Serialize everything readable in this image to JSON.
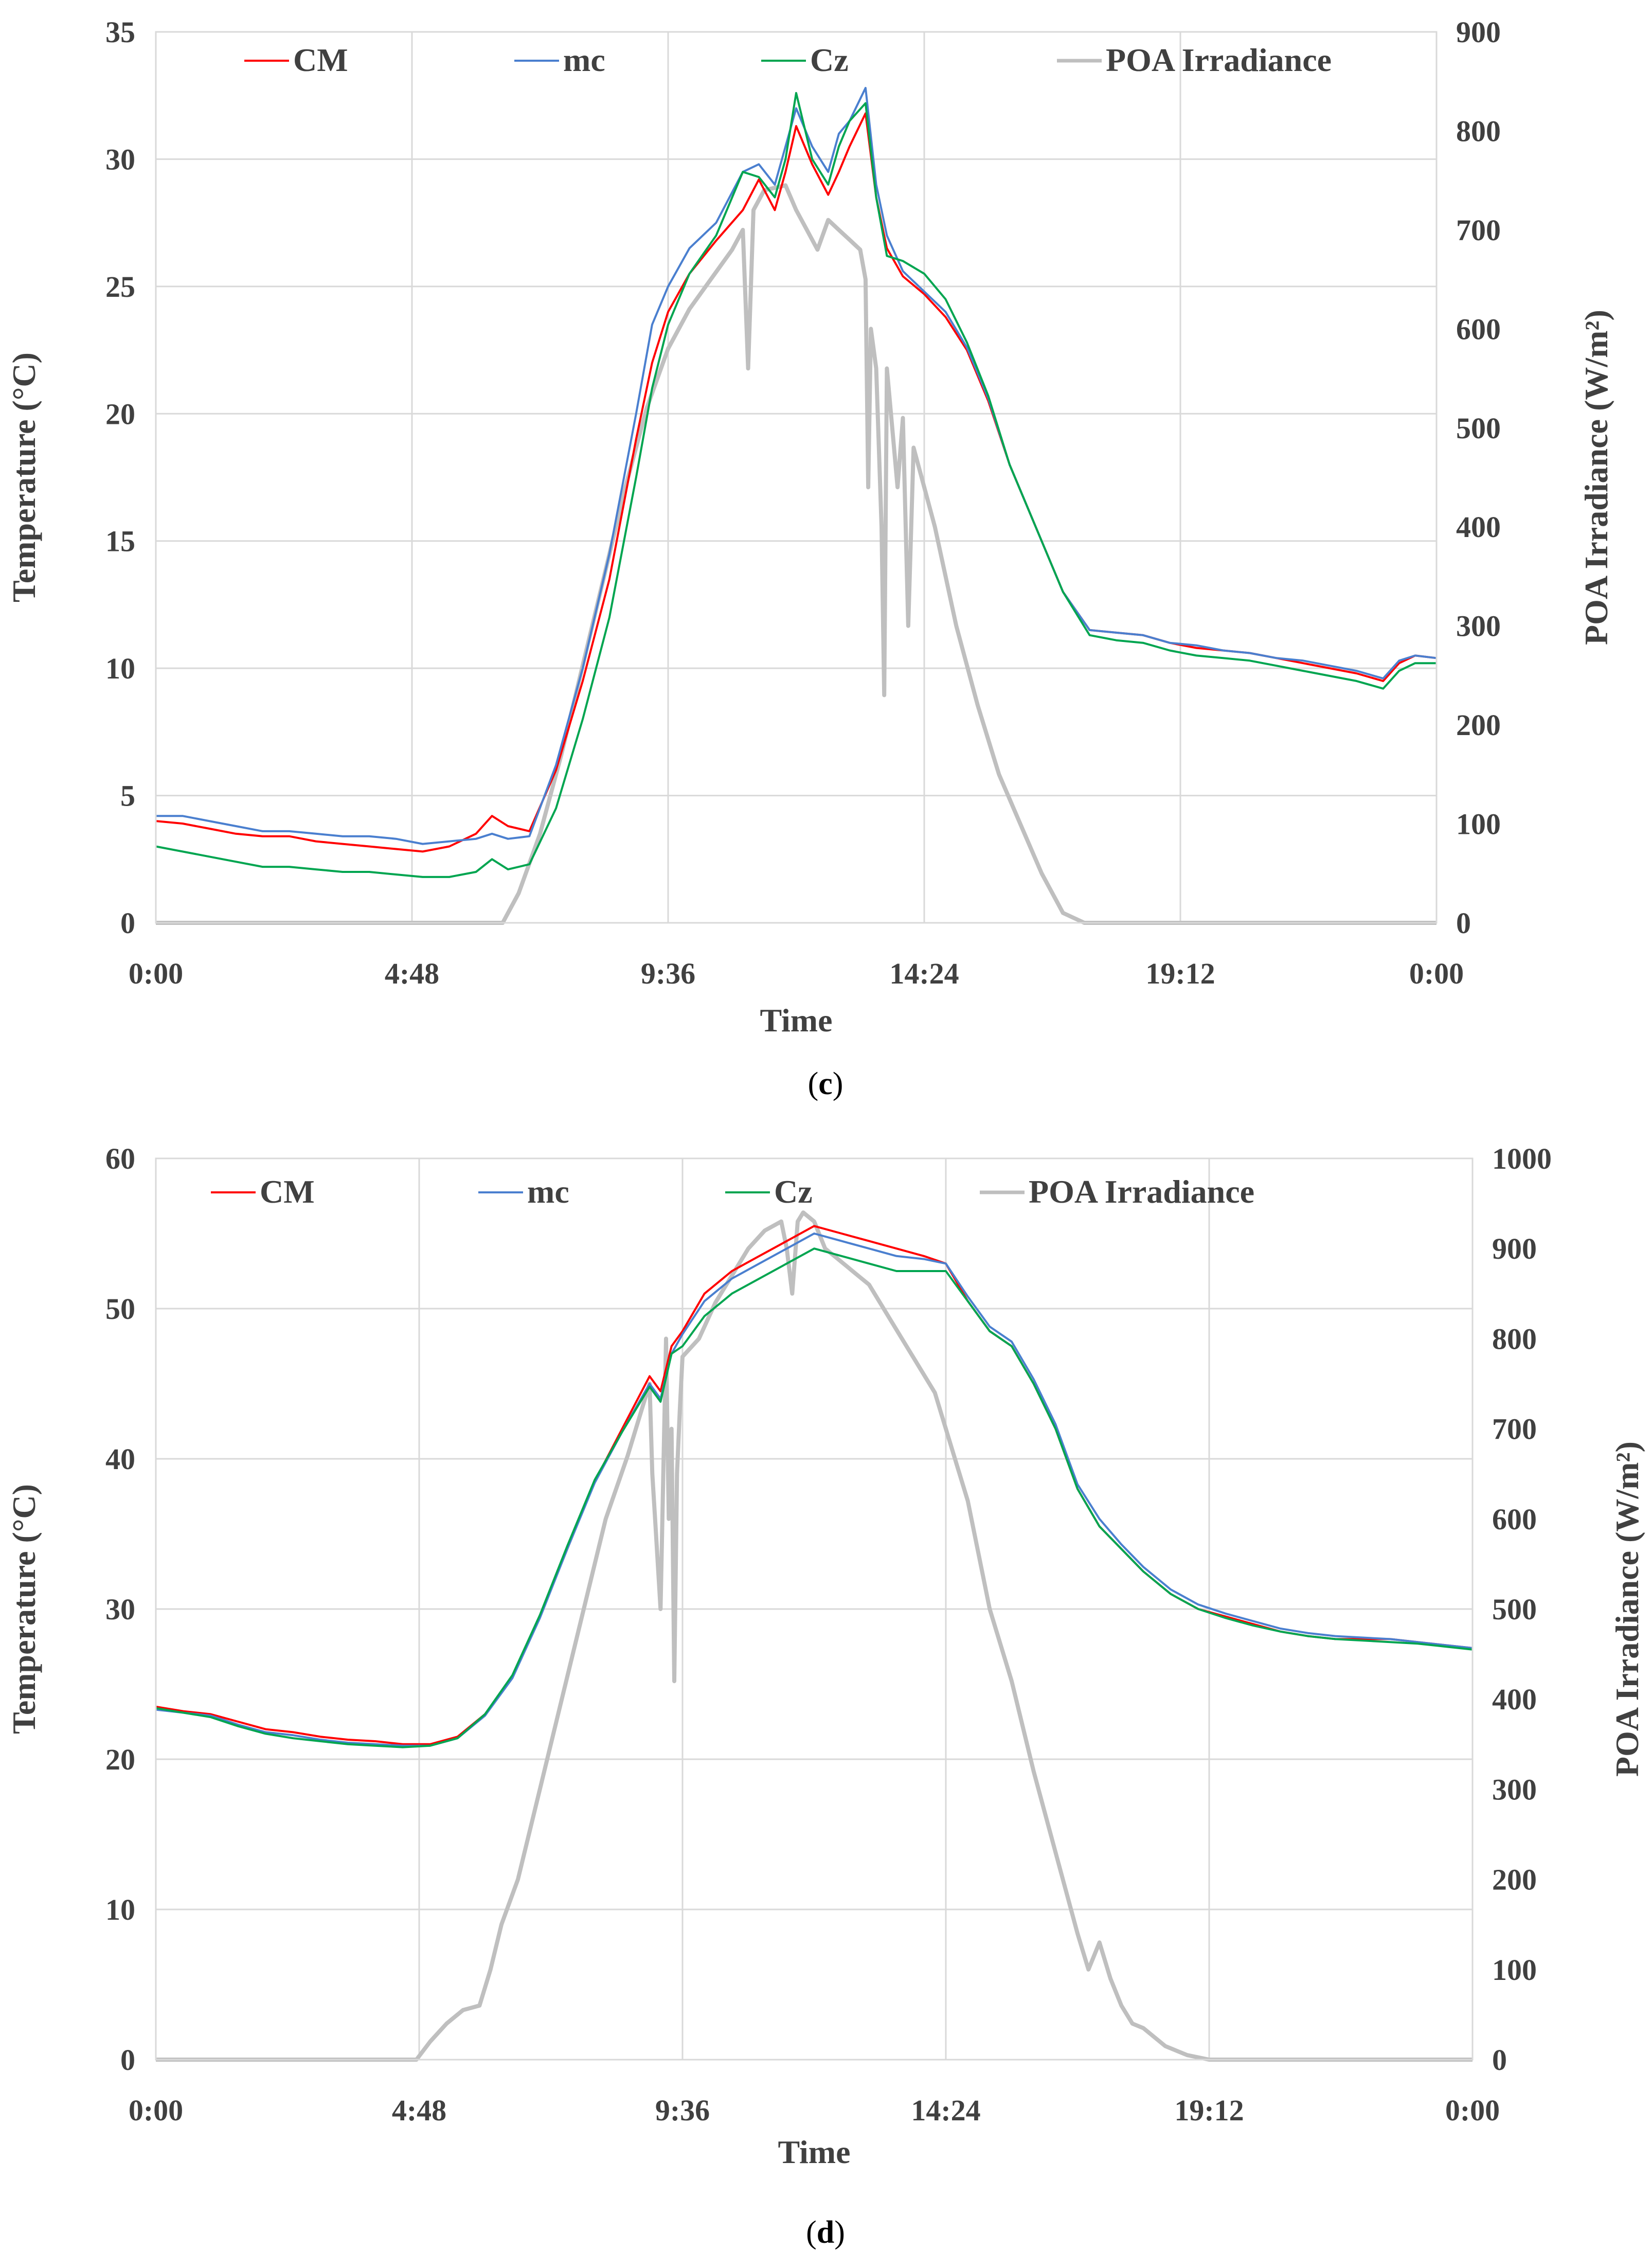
{
  "chart_data": [
    {
      "type": "line",
      "panel_label": "c",
      "xlabel": "Time",
      "ylabel": "Temperature (°C)",
      "y2label": "POA Irradiance (W/m²)",
      "x_range_hours": [
        0,
        24
      ],
      "xtick_hours": [
        0,
        4.8,
        9.6,
        14.4,
        19.2,
        24
      ],
      "xtick_labels": [
        "0:00",
        "4:48",
        "9:36",
        "14:24",
        "19:12",
        "0:00"
      ],
      "ylim": [
        0,
        35
      ],
      "yticks": [
        0,
        5,
        10,
        15,
        20,
        25,
        30,
        35
      ],
      "y2lim": [
        0,
        900
      ],
      "y2ticks": [
        0,
        100,
        200,
        300,
        400,
        500,
        600,
        700,
        800,
        900
      ],
      "grid": true,
      "legend_position": "top",
      "series": [
        {
          "name": "CM",
          "axis": "left",
          "color": "#ff0000",
          "x": [
            0,
            0.5,
            1,
            1.5,
            2,
            2.5,
            3,
            3.5,
            4,
            4.5,
            5,
            5.5,
            6,
            6.3,
            6.6,
            7,
            7.5,
            8,
            8.5,
            9,
            9.3,
            9.6,
            10,
            10.5,
            11,
            11.3,
            11.6,
            11.8,
            12,
            12.3,
            12.6,
            12.8,
            13,
            13.3,
            13.5,
            13.7,
            14,
            14.4,
            14.8,
            15.2,
            15.6,
            16,
            16.5,
            17,
            17.5,
            18,
            18.5,
            19,
            19.5,
            20,
            20.5,
            21,
            21.5,
            22,
            22.5,
            23,
            23.3,
            23.6,
            24
          ],
          "y": [
            4.0,
            3.9,
            3.7,
            3.5,
            3.4,
            3.4,
            3.2,
            3.1,
            3.0,
            2.9,
            2.8,
            3.0,
            3.5,
            4.2,
            3.8,
            3.6,
            6.0,
            9.5,
            13.5,
            19.0,
            22.0,
            24.0,
            25.5,
            26.8,
            28.0,
            29.2,
            28.0,
            29.5,
            31.3,
            29.8,
            28.6,
            29.5,
            30.5,
            31.8,
            28.5,
            26.5,
            25.4,
            24.7,
            23.8,
            22.5,
            20.5,
            18.0,
            15.5,
            13.0,
            11.5,
            11.4,
            11.3,
            11.0,
            10.8,
            10.7,
            10.6,
            10.4,
            10.2,
            10.0,
            9.8,
            9.5,
            10.2,
            10.5,
            10.4
          ]
        },
        {
          "name": "mc",
          "axis": "left",
          "color": "#4a7fcf",
          "x": [
            0,
            0.5,
            1,
            1.5,
            2,
            2.5,
            3,
            3.5,
            4,
            4.5,
            5,
            5.5,
            6,
            6.3,
            6.6,
            7,
            7.5,
            8,
            8.5,
            9,
            9.3,
            9.6,
            10,
            10.5,
            11,
            11.3,
            11.6,
            11.8,
            12,
            12.3,
            12.6,
            12.8,
            13,
            13.3,
            13.5,
            13.7,
            14,
            14.4,
            14.8,
            15.2,
            15.6,
            16,
            16.5,
            17,
            17.5,
            18,
            18.5,
            19,
            19.5,
            20,
            20.5,
            21,
            21.5,
            22,
            22.5,
            23,
            23.3,
            23.6,
            24
          ],
          "y": [
            4.2,
            4.2,
            4.0,
            3.8,
            3.6,
            3.6,
            3.5,
            3.4,
            3.4,
            3.3,
            3.1,
            3.2,
            3.3,
            3.5,
            3.3,
            3.4,
            6.2,
            10.0,
            14.5,
            20.0,
            23.5,
            25.0,
            26.5,
            27.5,
            29.5,
            29.8,
            29.0,
            30.5,
            32.0,
            30.5,
            29.5,
            31.0,
            31.5,
            32.8,
            29.0,
            27.0,
            25.6,
            24.8,
            24.0,
            22.6,
            20.6,
            18.0,
            15.5,
            13.0,
            11.5,
            11.4,
            11.3,
            11.0,
            10.9,
            10.7,
            10.6,
            10.4,
            10.3,
            10.1,
            9.9,
            9.6,
            10.3,
            10.5,
            10.4
          ]
        },
        {
          "name": "Cz",
          "axis": "left",
          "color": "#00a550",
          "x": [
            0,
            0.5,
            1,
            1.5,
            2,
            2.5,
            3,
            3.5,
            4,
            4.5,
            5,
            5.5,
            6,
            6.3,
            6.6,
            7,
            7.5,
            8,
            8.5,
            9,
            9.3,
            9.6,
            10,
            10.5,
            11,
            11.3,
            11.6,
            11.8,
            12,
            12.3,
            12.6,
            12.8,
            13,
            13.3,
            13.5,
            13.7,
            14,
            14.4,
            14.8,
            15.2,
            15.6,
            16,
            16.5,
            17,
            17.5,
            18,
            18.5,
            19,
            19.5,
            20,
            20.5,
            21,
            21.5,
            22,
            22.5,
            23,
            23.3,
            23.6,
            24
          ],
          "y": [
            3.0,
            2.8,
            2.6,
            2.4,
            2.2,
            2.2,
            2.1,
            2.0,
            2.0,
            1.9,
            1.8,
            1.8,
            2.0,
            2.5,
            2.1,
            2.3,
            4.5,
            8.0,
            12.0,
            17.5,
            21.0,
            23.5,
            25.5,
            27.0,
            29.5,
            29.3,
            28.5,
            30.0,
            32.6,
            30.0,
            29.0,
            30.5,
            31.5,
            32.2,
            28.5,
            26.2,
            26.0,
            25.5,
            24.5,
            22.8,
            20.7,
            18.0,
            15.5,
            13.0,
            11.3,
            11.1,
            11.0,
            10.7,
            10.5,
            10.4,
            10.3,
            10.1,
            9.9,
            9.7,
            9.5,
            9.2,
            9.9,
            10.2,
            10.2
          ]
        },
        {
          "name": "POA Irradiance",
          "axis": "right",
          "color": "#bfbfbf",
          "x": [
            0,
            6.5,
            6.8,
            7.2,
            7.6,
            8.0,
            8.4,
            8.8,
            9.2,
            9.6,
            10.0,
            10.4,
            10.8,
            11.0,
            11.1,
            11.2,
            11.4,
            11.8,
            12.0,
            12.2,
            12.4,
            12.6,
            12.8,
            13.0,
            13.2,
            13.3,
            13.35,
            13.4,
            13.5,
            13.6,
            13.65,
            13.7,
            13.8,
            13.9,
            14.0,
            14.1,
            14.2,
            14.4,
            14.6,
            14.8,
            15.0,
            15.4,
            15.8,
            16.2,
            16.6,
            17.0,
            17.4,
            24
          ],
          "y": [
            0,
            0,
            30,
            90,
            170,
            260,
            350,
            440,
            520,
            580,
            620,
            650,
            680,
            700,
            560,
            720,
            740,
            745,
            720,
            700,
            680,
            710,
            700,
            690,
            680,
            650,
            440,
            600,
            560,
            400,
            230,
            560,
            500,
            440,
            510,
            300,
            480,
            440,
            400,
            350,
            300,
            220,
            150,
            100,
            50,
            10,
            0,
            0
          ]
        }
      ]
    },
    {
      "type": "line",
      "panel_label": "d",
      "xlabel": "Time",
      "ylabel": "Temperature (°C)",
      "y2label": "POA Irradiance (W/m²)",
      "x_range_hours": [
        0,
        24
      ],
      "xtick_hours": [
        0,
        4.8,
        9.6,
        14.4,
        19.2,
        24
      ],
      "xtick_labels": [
        "0:00",
        "4:48",
        "9:36",
        "14:24",
        "19:12",
        "0:00"
      ],
      "ylim": [
        0,
        60
      ],
      "yticks": [
        0,
        10,
        20,
        30,
        40,
        50,
        60
      ],
      "y2lim": [
        0,
        1000
      ],
      "y2ticks": [
        0,
        100,
        200,
        300,
        400,
        500,
        600,
        700,
        800,
        900,
        1000
      ],
      "grid": true,
      "legend_position": "top",
      "series": [
        {
          "name": "CM",
          "axis": "left",
          "color": "#ff0000",
          "x": [
            0,
            0.5,
            1,
            1.5,
            2,
            2.5,
            3,
            3.5,
            4,
            4.5,
            5,
            5.5,
            6,
            6.5,
            7,
            7.5,
            8,
            8.5,
            9,
            9.2,
            9.4,
            9.6,
            10,
            10.5,
            11,
            11.5,
            12,
            12.5,
            13,
            13.5,
            14,
            14.4,
            14.8,
            15.2,
            15.6,
            16,
            16.4,
            16.8,
            17.2,
            17.6,
            18,
            18.5,
            19,
            19.5,
            20,
            20.5,
            21,
            21.5,
            22,
            22.5,
            23,
            23.5,
            24
          ],
          "y": [
            23.5,
            23.2,
            23.0,
            22.5,
            22.0,
            21.8,
            21.5,
            21.3,
            21.2,
            21.0,
            21.0,
            21.5,
            23.0,
            25.5,
            29.5,
            34.0,
            38.5,
            42.0,
            45.5,
            44.5,
            47.5,
            48.5,
            51.0,
            52.5,
            53.5,
            54.5,
            55.5,
            55.0,
            54.5,
            54.0,
            53.5,
            53.0,
            50.5,
            48.5,
            47.5,
            45.0,
            42.0,
            38.0,
            35.5,
            34.0,
            32.5,
            31.0,
            30.0,
            29.5,
            29.0,
            28.5,
            28.2,
            28.0,
            28.0,
            28.0,
            27.8,
            27.6,
            27.4
          ]
        },
        {
          "name": "mc",
          "axis": "left",
          "color": "#4a7fcf",
          "x": [
            0,
            0.5,
            1,
            1.5,
            2,
            2.5,
            3,
            3.5,
            4,
            4.5,
            5,
            5.5,
            6,
            6.5,
            7,
            7.5,
            8,
            8.5,
            9,
            9.2,
            9.4,
            9.6,
            10,
            10.5,
            11,
            11.5,
            12,
            12.5,
            13,
            13.5,
            14,
            14.4,
            14.8,
            15.2,
            15.6,
            16,
            16.4,
            16.8,
            17.2,
            17.6,
            18,
            18.5,
            19,
            19.5,
            20,
            20.5,
            21,
            21.5,
            22,
            22.5,
            23,
            23.5,
            24
          ],
          "y": [
            23.3,
            23.1,
            22.9,
            22.3,
            21.8,
            21.6,
            21.3,
            21.1,
            21.0,
            20.9,
            20.9,
            21.4,
            22.9,
            25.4,
            29.4,
            34.0,
            38.4,
            41.8,
            45.0,
            44.0,
            47.0,
            48.3,
            50.5,
            52.0,
            53.0,
            54.0,
            55.0,
            54.5,
            54.0,
            53.5,
            53.3,
            53.0,
            50.8,
            48.8,
            47.8,
            45.3,
            42.3,
            38.3,
            36.0,
            34.3,
            32.8,
            31.3,
            30.3,
            29.7,
            29.2,
            28.7,
            28.4,
            28.2,
            28.1,
            28.0,
            27.8,
            27.6,
            27.4
          ]
        },
        {
          "name": "Cz",
          "axis": "left",
          "color": "#00a550",
          "x": [
            0,
            0.5,
            1,
            1.5,
            2,
            2.5,
            3,
            3.5,
            4,
            4.5,
            5,
            5.5,
            6,
            6.5,
            7,
            7.5,
            8,
            8.5,
            9,
            9.2,
            9.4,
            9.6,
            10,
            10.5,
            11,
            11.5,
            12,
            12.5,
            13,
            13.5,
            14,
            14.4,
            14.8,
            15.2,
            15.6,
            16,
            16.4,
            16.8,
            17.2,
            17.6,
            18,
            18.5,
            19,
            19.5,
            20,
            20.5,
            21,
            21.5,
            22,
            22.5,
            23,
            23.5,
            24
          ],
          "y": [
            23.4,
            23.1,
            22.8,
            22.2,
            21.7,
            21.4,
            21.2,
            21.0,
            20.9,
            20.8,
            20.9,
            21.4,
            23.0,
            25.6,
            29.6,
            34.2,
            38.6,
            41.8,
            44.8,
            43.8,
            47.0,
            47.5,
            49.5,
            51.0,
            52.0,
            53.0,
            54.0,
            53.5,
            53.0,
            52.5,
            52.5,
            52.5,
            50.5,
            48.5,
            47.5,
            45.0,
            42.0,
            38.0,
            35.5,
            34.0,
            32.5,
            31.0,
            30.0,
            29.4,
            28.9,
            28.5,
            28.2,
            28.0,
            27.9,
            27.8,
            27.7,
            27.5,
            27.3
          ]
        },
        {
          "name": "POA Irradiance",
          "axis": "right",
          "color": "#bfbfbf",
          "x": [
            0,
            4.75,
            5.0,
            5.3,
            5.6,
            5.9,
            6.1,
            6.3,
            6.6,
            7.0,
            7.4,
            7.8,
            8.2,
            8.6,
            9.0,
            9.05,
            9.1,
            9.2,
            9.3,
            9.35,
            9.4,
            9.45,
            9.5,
            9.55,
            9.6,
            9.9,
            10.2,
            10.5,
            10.8,
            11.1,
            11.4,
            11.5,
            11.6,
            11.7,
            11.8,
            12.0,
            12.2,
            12.4,
            12.6,
            12.8,
            13.0,
            13.4,
            13.8,
            14.2,
            14.4,
            14.6,
            14.8,
            15.0,
            15.2,
            15.6,
            16.0,
            16.4,
            16.8,
            17.0,
            17.2,
            17.4,
            17.6,
            17.8,
            18.0,
            18.4,
            18.8,
            19.2,
            24
          ],
          "y": [
            0,
            0,
            20,
            40,
            55,
            60,
            100,
            150,
            200,
            300,
            400,
            500,
            600,
            670,
            750,
            650,
            600,
            500,
            800,
            600,
            700,
            420,
            650,
            720,
            780,
            800,
            840,
            870,
            900,
            920,
            930,
            900,
            850,
            930,
            940,
            930,
            900,
            890,
            880,
            870,
            860,
            820,
            780,
            740,
            700,
            660,
            620,
            560,
            500,
            420,
            320,
            230,
            140,
            100,
            130,
            90,
            60,
            40,
            35,
            15,
            5,
            0,
            0
          ]
        }
      ]
    }
  ]
}
